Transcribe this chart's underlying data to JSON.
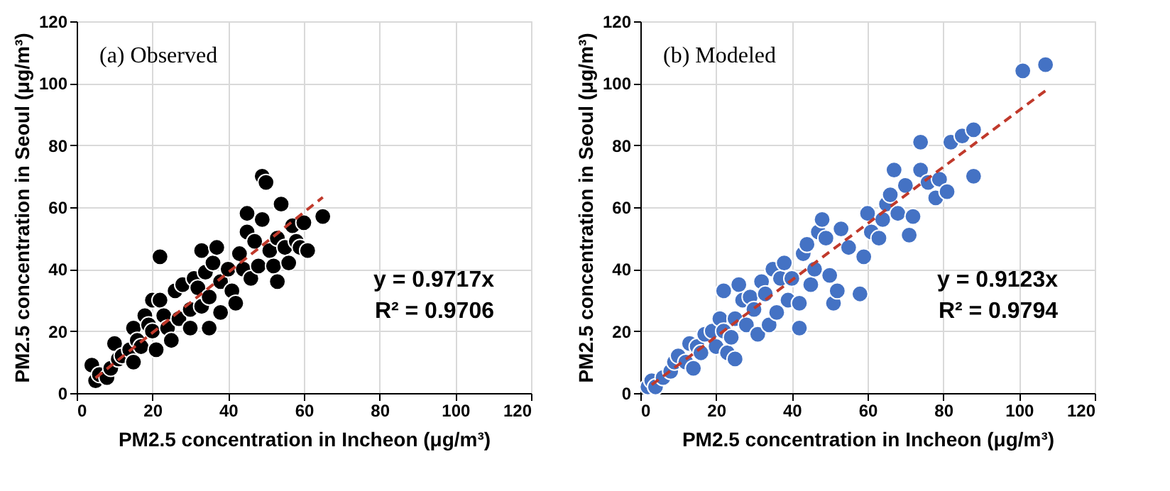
{
  "chart_data": [
    {
      "type": "scatter",
      "xlabel": "PM2.5 concentration in Incheon (μg/m³)",
      "ylabel": "PM2.5 concentration in Seoul (μg/m³)",
      "xlim": [
        0,
        120
      ],
      "ylim": [
        0,
        120
      ],
      "xticks": [
        0,
        20,
        40,
        60,
        80,
        100,
        120
      ],
      "yticks": [
        0,
        20,
        40,
        60,
        80,
        100,
        120
      ],
      "grid": true,
      "annotations": [
        "(a) Observed",
        "y = 0.9717x",
        "R² = 0.9706"
      ],
      "series": [
        {
          "marker": "circle",
          "color": "#000000",
          "x": [
            4,
            5,
            6,
            8,
            9,
            10,
            11,
            12,
            14,
            15,
            15,
            16,
            17,
            18,
            19,
            20,
            20,
            21,
            22,
            22,
            23,
            24,
            25,
            26,
            27,
            28,
            30,
            30,
            31,
            32,
            33,
            33,
            34,
            35,
            35,
            36,
            37,
            38,
            38,
            40,
            41,
            42,
            43,
            44,
            45,
            45,
            46,
            47,
            48,
            49,
            49,
            50,
            51,
            52,
            53,
            53,
            54,
            55,
            56,
            57,
            58,
            59,
            60,
            61,
            65
          ],
          "values": [
            9,
            4,
            6,
            5,
            8,
            16,
            11,
            12,
            14,
            10,
            21,
            17,
            15,
            25,
            22,
            30,
            20,
            14,
            44,
            30,
            25,
            21,
            17,
            33,
            24,
            35,
            21,
            27,
            37,
            34,
            46,
            28,
            39,
            21,
            31,
            42,
            47,
            26,
            36,
            40,
            33,
            29,
            45,
            40,
            58,
            52,
            37,
            49,
            41,
            56,
            70,
            68,
            46,
            41,
            36,
            50,
            61,
            47,
            42,
            54,
            49,
            47,
            55,
            46,
            57
          ]
        },
        {
          "type": "line",
          "line_style": "dashed",
          "color": "#c0392b",
          "x": [
            5,
            65
          ],
          "values": [
            4.9,
            63.2
          ]
        }
      ]
    },
    {
      "type": "scatter",
      "xlabel": "PM2.5 concentration in Incheon (μg/m³)",
      "ylabel": "PM2.5 concentration in Seoul (μg/m³)",
      "xlim": [
        0,
        120
      ],
      "ylim": [
        0,
        120
      ],
      "xticks": [
        0,
        20,
        40,
        60,
        80,
        100,
        120
      ],
      "yticks": [
        0,
        20,
        40,
        60,
        80,
        100,
        120
      ],
      "grid": true,
      "annotations": [
        "(b) Modeled",
        "y = 0.9123x",
        "R² = 0.9794"
      ],
      "series": [
        {
          "marker": "circle",
          "color": "#4472c4",
          "x": [
            2,
            3,
            4,
            6,
            8,
            9,
            10,
            12,
            13,
            14,
            15,
            16,
            17,
            19,
            20,
            21,
            22,
            22,
            23,
            24,
            25,
            25,
            26,
            27,
            28,
            29,
            30,
            31,
            32,
            33,
            34,
            35,
            36,
            37,
            38,
            39,
            40,
            42,
            42,
            43,
            44,
            45,
            46,
            47,
            48,
            49,
            50,
            51,
            52,
            53,
            55,
            58,
            59,
            60,
            61,
            63,
            64,
            65,
            66,
            67,
            68,
            70,
            71,
            72,
            74,
            74,
            76,
            78,
            79,
            81,
            82,
            85,
            88,
            88,
            101,
            107
          ],
          "values": [
            2,
            4,
            2,
            5,
            7,
            10,
            12,
            10,
            16,
            8,
            15,
            13,
            19,
            20,
            15,
            24,
            20,
            33,
            13,
            18,
            11,
            24,
            35,
            30,
            22,
            31,
            27,
            19,
            36,
            32,
            22,
            40,
            26,
            37,
            42,
            30,
            37,
            29,
            21,
            45,
            48,
            35,
            40,
            52,
            56,
            50,
            38,
            29,
            33,
            53,
            47,
            32,
            44,
            58,
            52,
            50,
            56,
            61,
            64,
            72,
            58,
            67,
            51,
            57,
            81,
            72,
            68,
            63,
            69,
            65,
            81,
            83,
            85,
            70,
            104,
            106
          ]
        },
        {
          "type": "line",
          "line_style": "dashed",
          "color": "#c0392b",
          "x": [
            3,
            107
          ],
          "values": [
            2.7,
            97.6
          ]
        }
      ]
    }
  ]
}
